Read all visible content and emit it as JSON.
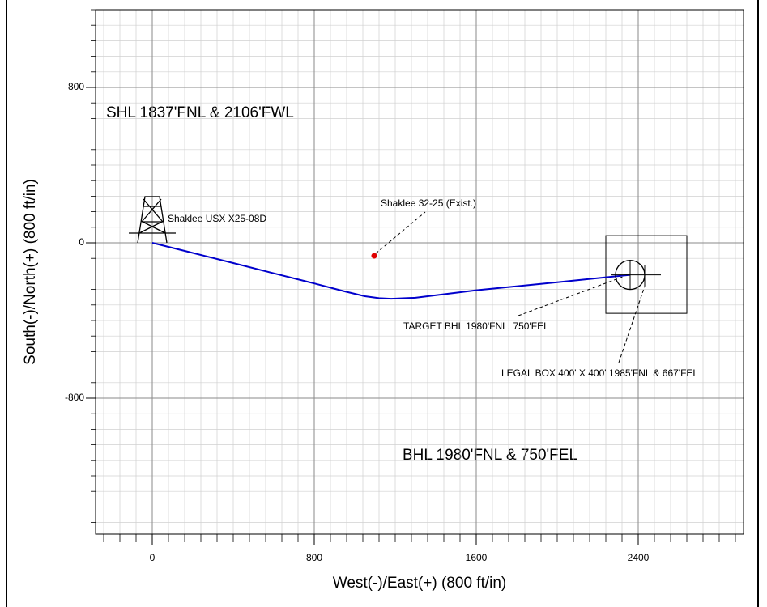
{
  "chart_data": {
    "type": "line",
    "xlabel": "West(-)/East(+) (800 ft/in)",
    "ylabel": "South(-)/North(+) (800 ft/in)",
    "xlim": [
      -280,
      2920
    ],
    "ylim": [
      -1500,
      1200
    ],
    "xticks": [
      0,
      800,
      1600,
      2400
    ],
    "yticks": [
      800,
      0,
      -800
    ],
    "grid": true,
    "series": [
      {
        "name": "Shaklee USX X25-08D",
        "color": "#0000cc",
        "x": [
          0,
          200,
          400,
          600,
          800,
          950,
          1050,
          1120,
          1180,
          1300,
          1600,
          2000,
          2360
        ],
        "values": [
          0,
          -52,
          -104,
          -157,
          -209,
          -250,
          -275,
          -285,
          -288,
          -283,
          -244,
          -203,
          -165
        ]
      }
    ],
    "existing_well": {
      "label": "Shaklee 32-25 (Exist.)",
      "x": 1096,
      "y": -67,
      "color": "#e00000"
    },
    "target": {
      "label": "TARGET BHL 1980'FNL, 750'FEL",
      "x": 2360,
      "y": -165
    },
    "legal_box": {
      "label": "LEGAL BOX 400' X 400' 1985'FNL & 667'FEL",
      "x": [
        2240,
        2640
      ],
      "y": [
        -363,
        37
      ]
    },
    "annotations": [
      "SHL 1837'FNL & 2106'FWL",
      "BHL 1980'FNL & 750'FEL"
    ]
  }
}
